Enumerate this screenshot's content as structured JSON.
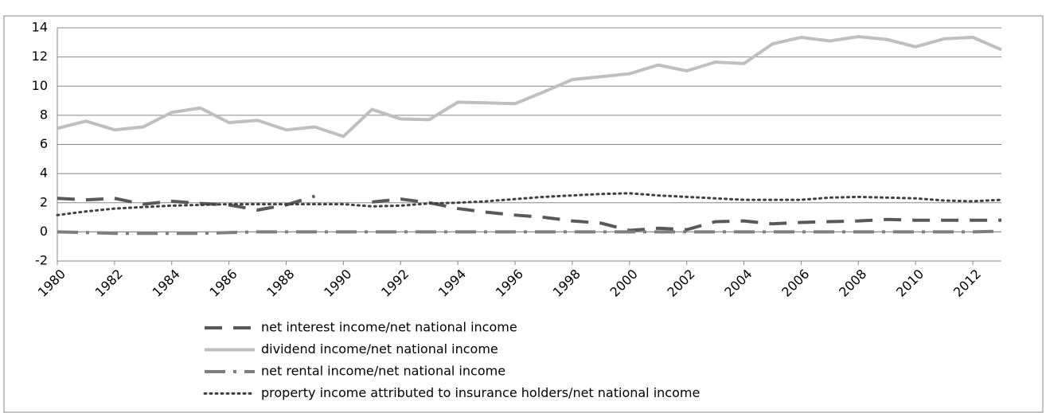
{
  "chart_data": {
    "type": "line",
    "x": [
      1980,
      1981,
      1982,
      1983,
      1984,
      1985,
      1986,
      1987,
      1988,
      1989,
      1990,
      1991,
      1992,
      1993,
      1994,
      1995,
      1996,
      1997,
      1998,
      1999,
      2000,
      2001,
      2002,
      2003,
      2004,
      2005,
      2006,
      2007,
      2008,
      2009,
      2010,
      2011,
      2012,
      2013
    ],
    "series": [
      {
        "name": "net interest income/net national income",
        "color": "#595959",
        "dash": "long-dash",
        "values": [
          2.3,
          2.2,
          2.3,
          1.9,
          2.1,
          1.95,
          1.85,
          1.5,
          1.85,
          2.45,
          null,
          2.05,
          2.25,
          2.0,
          1.6,
          1.35,
          1.15,
          1.0,
          0.75,
          0.6,
          0.1,
          0.25,
          0.15,
          0.7,
          0.75,
          0.55,
          0.65,
          0.7,
          0.75,
          0.85,
          0.8,
          0.8,
          0.8,
          0.8
        ]
      },
      {
        "name": "dividend income/net national income",
        "color": "#bfbfbf",
        "dash": "solid",
        "values": [
          7.1,
          7.6,
          7.0,
          7.2,
          8.2,
          8.5,
          7.5,
          7.65,
          7.0,
          7.2,
          6.55,
          8.4,
          7.75,
          7.7,
          8.9,
          8.85,
          8.8,
          9.6,
          10.45,
          10.65,
          10.85,
          11.45,
          11.05,
          11.65,
          11.55,
          12.9,
          13.35,
          13.1,
          13.4,
          13.2,
          12.7,
          13.25,
          13.35,
          12.5
        ]
      },
      {
        "name": "net rental income/net national income",
        "color": "#7f7f7f",
        "dash": "long-dash-dot",
        "values": [
          0.0,
          -0.05,
          -0.1,
          -0.1,
          -0.1,
          -0.1,
          -0.05,
          0.0,
          0.0,
          0.0,
          0.0,
          0.0,
          0.0,
          0.0,
          0.0,
          0.0,
          0.0,
          0.0,
          0.0,
          0.0,
          0.0,
          0.0,
          0.0,
          0.0,
          0.0,
          0.0,
          0.0,
          0.0,
          0.0,
          0.0,
          0.0,
          0.0,
          0.0,
          0.05
        ]
      },
      {
        "name": "property income attributed to insurance holders/net national income",
        "color": "#404040",
        "dash": "dot",
        "values": [
          1.15,
          1.4,
          1.6,
          1.7,
          1.8,
          1.85,
          1.9,
          1.9,
          1.9,
          1.9,
          1.9,
          1.75,
          1.8,
          1.95,
          2.0,
          2.1,
          2.25,
          2.4,
          2.5,
          2.6,
          2.65,
          2.5,
          2.4,
          2.3,
          2.2,
          2.2,
          2.2,
          2.35,
          2.4,
          2.35,
          2.3,
          2.15,
          2.1,
          2.2
        ]
      }
    ],
    "xlim": [
      1980,
      2013
    ],
    "xticks": [
      1980,
      1982,
      1984,
      1986,
      1988,
      1990,
      1992,
      1994,
      1996,
      1998,
      2000,
      2002,
      2004,
      2006,
      2008,
      2010,
      2012
    ],
    "ylim": [
      -2,
      14
    ],
    "yticks": [
      -2,
      0,
      2,
      4,
      6,
      8,
      10,
      12,
      14
    ],
    "grid": true
  }
}
